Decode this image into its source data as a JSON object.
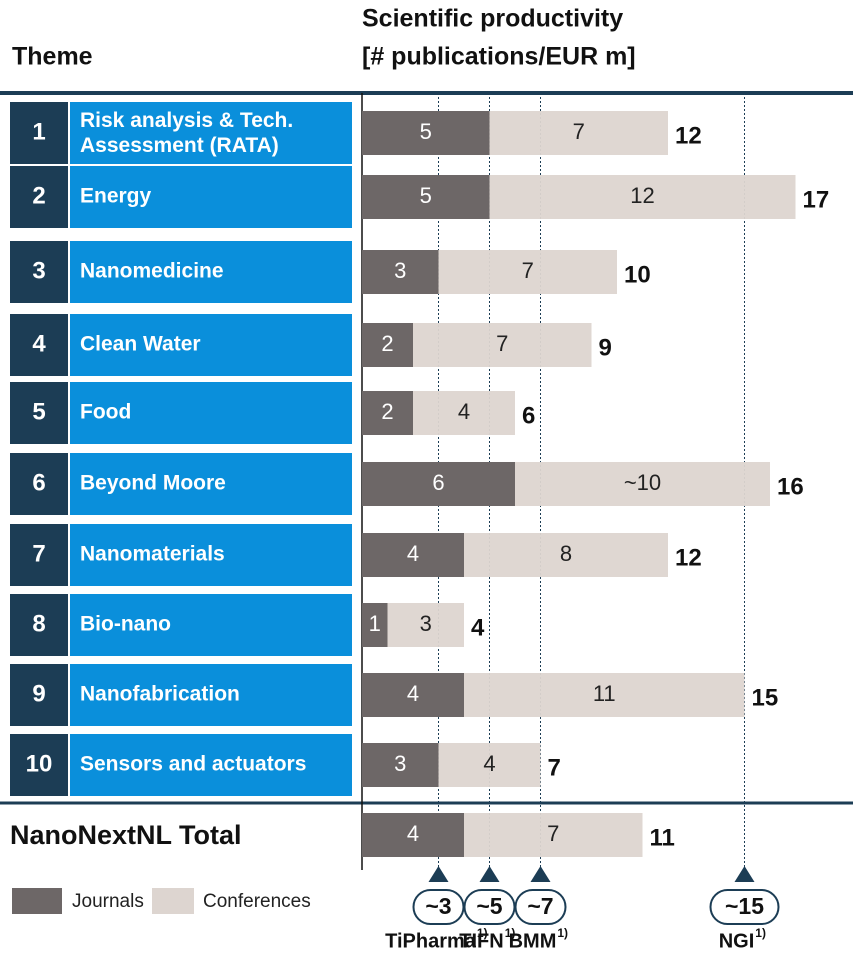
{
  "chart_data": {
    "type": "stacked-bar-horizontal",
    "theme_header": "Theme",
    "value_header": [
      "Scientific productivity",
      "[# publications/EUR m]"
    ],
    "numbers": [
      "1",
      "2",
      "3",
      "4",
      "5",
      "6",
      "7",
      "8",
      "9",
      "10"
    ],
    "categories": [
      "Risk analysis & Tech. Assessment (RATA)",
      "Energy",
      "Nanomedicine",
      "Clean Water",
      "Food",
      "Beyond Moore",
      "Nanomaterials",
      "Bio-nano",
      "Nanofabrication",
      "Sensors and actuators"
    ],
    "series": [
      {
        "name": "Journals",
        "color": "#6d6767",
        "values": [
          5,
          5,
          3,
          2,
          2,
          6,
          4,
          1,
          4,
          3
        ]
      },
      {
        "name": "Conferences",
        "color": "#ddd5d0",
        "values": [
          7,
          12,
          7,
          7,
          4,
          10,
          8,
          3,
          11,
          4
        ],
        "value_labels": [
          "7",
          "12",
          "7",
          "7",
          "4",
          "~10",
          "8",
          "3",
          "11",
          "4"
        ]
      }
    ],
    "totals": [
      12,
      17,
      10,
      9,
      6,
      16,
      12,
      4,
      15,
      7
    ],
    "summary": {
      "label": "NanoNextNL Total",
      "values": [
        4,
        7
      ],
      "total": 11
    },
    "benchmarks": [
      {
        "value": 3,
        "label": "~3",
        "name": "TiPharma",
        "note": "1)"
      },
      {
        "value": 5,
        "label": "~5",
        "name": "TIFN",
        "note": "1)"
      },
      {
        "value": 7,
        "label": "~7",
        "name": "BMM",
        "note": "1)"
      },
      {
        "value": 15,
        "label": "~15",
        "name": "NGI",
        "note": "1)"
      }
    ],
    "xlim": [
      0,
      19
    ]
  }
}
